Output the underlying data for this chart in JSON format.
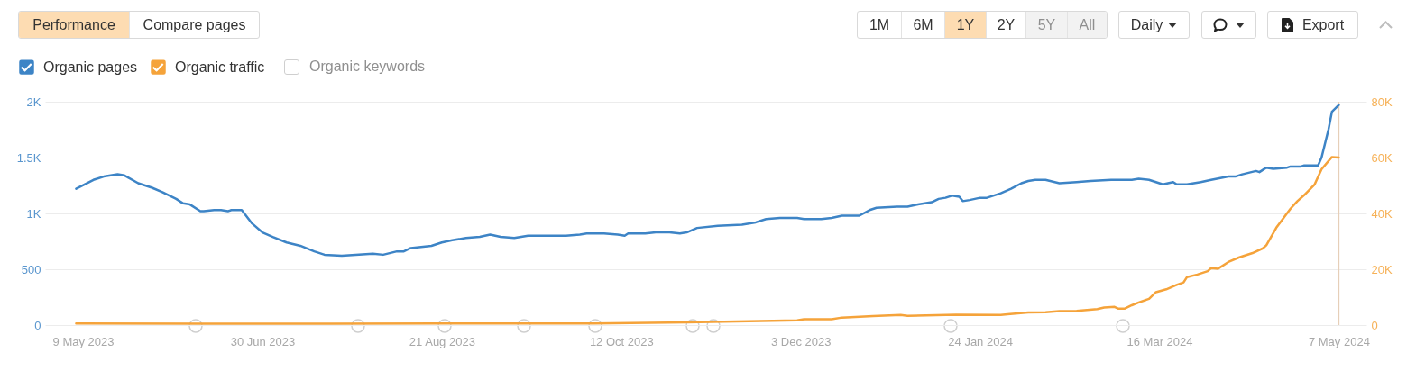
{
  "chart_data": {
    "type": "line",
    "annotations": [
      "Performance",
      "Compare pages",
      "1M",
      "6M",
      "1Y",
      "2Y",
      "5Y",
      "All",
      "Daily",
      "Export",
      "Organic keywords"
    ],
    "xlim": [
      "2023-04-28",
      "2024-05-15"
    ],
    "xticks": [
      {
        "value": "2023-05-09",
        "label": "9 May 2023"
      },
      {
        "value": "2023-06-30",
        "label": "30 Jun 2023"
      },
      {
        "value": "2023-08-21",
        "label": "21 Aug 2023"
      },
      {
        "value": "2023-10-12",
        "label": "12 Oct 2023"
      },
      {
        "value": "2023-12-03",
        "label": "3 Dec 2023"
      },
      {
        "value": "2024-01-24",
        "label": "24 Jan 2024"
      },
      {
        "value": "2024-03-16",
        "label": "16 Mar 2024"
      },
      {
        "value": "2024-05-07",
        "label": "7 May 2024"
      }
    ],
    "ylim": [
      0,
      2000
    ],
    "yticks": [
      0,
      500,
      {
        "value": 1000,
        "label": "1K"
      },
      {
        "value": 1500,
        "label": "1.5K"
      },
      {
        "value": 2000,
        "label": "2K"
      }
    ],
    "y2lim": [
      0,
      80000
    ],
    "y2ticks": [
      0,
      {
        "value": 20000,
        "label": "20K"
      },
      {
        "value": 40000,
        "label": "40K"
      },
      {
        "value": 60000,
        "label": "60K"
      },
      {
        "value": 80000,
        "label": "80K"
      }
    ],
    "grid": "y",
    "legend": "top left",
    "ref_lines": [
      {
        "axis": "x",
        "value": "2024-05-07",
        "color": "#e6cfb8"
      }
    ],
    "series": [
      {
        "name": "Organic pages",
        "color": "#3d84c6",
        "x": [
          "2023-05-07",
          "2023-05-12",
          "2023-05-15",
          "2023-05-19",
          "2023-05-21",
          "2023-05-25",
          "2023-05-29",
          "2023-06-01",
          "2023-06-05",
          "2023-06-07",
          "2023-06-09",
          "2023-06-12",
          "2023-06-13",
          "2023-06-16",
          "2023-06-18",
          "2023-06-20",
          "2023-06-21",
          "2023-06-24",
          "2023-06-25",
          "2023-06-27",
          "2023-06-30",
          "2023-07-03",
          "2023-07-07",
          "2023-07-11",
          "2023-07-15",
          "2023-07-18",
          "2023-07-23",
          "2023-07-27",
          "2023-08-01",
          "2023-08-04",
          "2023-08-08",
          "2023-08-10",
          "2023-08-12",
          "2023-08-18",
          "2023-08-21",
          "2023-08-24",
          "2023-08-28",
          "2023-09-01",
          "2023-09-04",
          "2023-09-07",
          "2023-09-11",
          "2023-09-15",
          "2023-09-20",
          "2023-09-26",
          "2023-09-30",
          "2023-10-02",
          "2023-10-07",
          "2023-10-11",
          "2023-10-13",
          "2023-10-14",
          "2023-10-19",
          "2023-10-22",
          "2023-10-26",
          "2023-10-29",
          "2023-10-31",
          "2023-11-03",
          "2023-11-09",
          "2023-11-16",
          "2023-11-20",
          "2023-11-23",
          "2023-11-27",
          "2023-12-02",
          "2023-12-04",
          "2023-12-09",
          "2023-12-12",
          "2023-12-15",
          "2023-12-20",
          "2023-12-23",
          "2023-12-25",
          "2023-12-31",
          "2024-01-03",
          "2024-01-06",
          "2024-01-10",
          "2024-01-12",
          "2024-01-14",
          "2024-01-16",
          "2024-01-18",
          "2024-01-19",
          "2024-01-21",
          "2024-01-24",
          "2024-01-26",
          "2024-01-30",
          "2024-02-02",
          "2024-02-05",
          "2024-02-07",
          "2024-02-09",
          "2024-02-12",
          "2024-02-16",
          "2024-02-21",
          "2024-02-25",
          "2024-03-02",
          "2024-03-05",
          "2024-03-08",
          "2024-03-10",
          "2024-03-13",
          "2024-03-17",
          "2024-03-20",
          "2024-03-21",
          "2024-03-24",
          "2024-03-28",
          "2024-03-31",
          "2024-04-05",
          "2024-04-07",
          "2024-04-09",
          "2024-04-13",
          "2024-04-14",
          "2024-04-16",
          "2024-04-18",
          "2024-04-22",
          "2024-04-23",
          "2024-04-26",
          "2024-04-27",
          "2024-05-01",
          "2024-05-02",
          "2024-05-04",
          "2024-05-05",
          "2024-05-07"
        ],
        "values": [
          1220,
          1300,
          1330,
          1350,
          1340,
          1270,
          1230,
          1190,
          1130,
          1090,
          1080,
          1020,
          1020,
          1030,
          1030,
          1020,
          1030,
          1030,
          990,
          910,
          830,
          790,
          740,
          710,
          660,
          630,
          620,
          630,
          640,
          630,
          660,
          660,
          690,
          710,
          740,
          760,
          780,
          790,
          810,
          790,
          780,
          800,
          800,
          800,
          810,
          820,
          820,
          810,
          800,
          820,
          820,
          830,
          830,
          820,
          830,
          870,
          890,
          900,
          920,
          950,
          960,
          960,
          950,
          950,
          960,
          980,
          980,
          1030,
          1050,
          1060,
          1060,
          1080,
          1100,
          1130,
          1140,
          1160,
          1150,
          1110,
          1120,
          1140,
          1140,
          1180,
          1220,
          1270,
          1290,
          1300,
          1300,
          1270,
          1280,
          1290,
          1300,
          1300,
          1300,
          1310,
          1300,
          1260,
          1280,
          1260,
          1260,
          1280,
          1300,
          1330,
          1330,
          1350,
          1380,
          1370,
          1410,
          1400,
          1410,
          1420,
          1420,
          1430,
          1430,
          1500,
          1750,
          1910,
          1970
        ]
      },
      {
        "name": "Organic traffic",
        "color": "#f5a33a",
        "axis": "y2",
        "x": [
          "2023-05-07",
          "2023-06-14",
          "2023-07-20",
          "2023-08-20",
          "2023-09-20",
          "2023-10-04",
          "2023-10-31",
          "2023-11-18",
          "2023-12-02",
          "2023-12-04",
          "2023-12-12",
          "2023-12-15",
          "2023-12-24",
          "2024-01-01",
          "2024-01-03",
          "2024-01-17",
          "2024-01-30",
          "2024-02-01",
          "2024-02-07",
          "2024-02-12",
          "2024-02-16",
          "2024-02-21",
          "2024-02-27",
          "2024-02-29",
          "2024-03-03",
          "2024-03-04",
          "2024-03-06",
          "2024-03-08",
          "2024-03-10",
          "2024-03-13",
          "2024-03-15",
          "2024-03-18",
          "2024-03-21",
          "2024-03-23",
          "2024-03-24",
          "2024-03-27",
          "2024-03-30",
          "2024-03-31",
          "2024-04-02",
          "2024-04-05",
          "2024-04-08",
          "2024-04-09",
          "2024-04-12",
          "2024-04-15",
          "2024-04-16",
          "2024-04-19",
          "2024-04-23",
          "2024-04-25",
          "2024-04-27",
          "2024-04-30",
          "2024-05-02",
          "2024-05-05",
          "2024-05-07"
        ],
        "values": [
          600,
          500,
          500,
          600,
          600,
          600,
          1000,
          1400,
          1700,
          2100,
          2100,
          2700,
          3200,
          3600,
          3300,
          3700,
          3600,
          3900,
          4500,
          4600,
          5000,
          5100,
          5700,
          6300,
          6500,
          5900,
          5900,
          7100,
          8100,
          9400,
          11800,
          12800,
          14400,
          15300,
          17200,
          18100,
          19300,
          20400,
          20200,
          22600,
          24200,
          24600,
          25800,
          27500,
          28600,
          35100,
          41700,
          44400,
          46600,
          50400,
          55800,
          60200,
          60000
        ]
      }
    ]
  }
}
